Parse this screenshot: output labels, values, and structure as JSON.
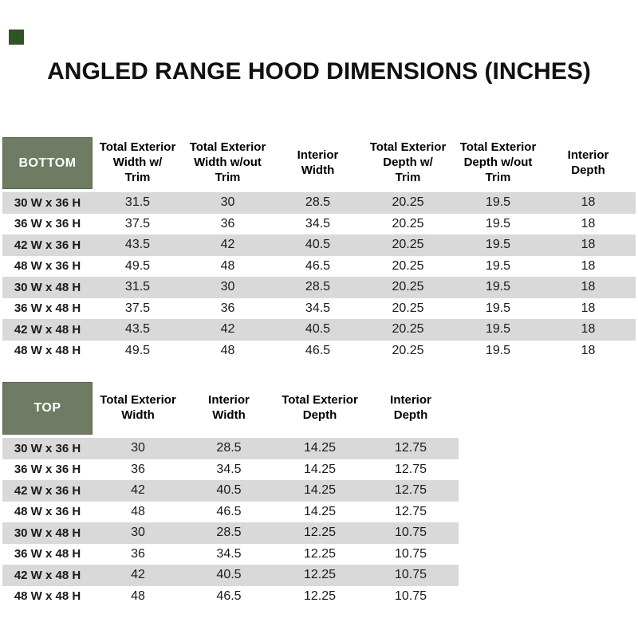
{
  "page": {
    "title": "ANGLED RANGE HOOD DIMENSIONS (INCHES)"
  },
  "colors": {
    "header_green": "#6f7b62",
    "header_green_border": "#5a664c",
    "stripe_gray": "#d9d9d9",
    "finish_swatch_green": "#2f5426",
    "text": "#1a1a1a"
  },
  "bottom_table": {
    "label": "BOTTOM",
    "columns": [
      "Total Exterior\nWidth w/\nTrim",
      "Total Exterior\nWidth w/out\nTrim",
      "Interior\nWidth",
      "Total Exterior\nDepth w/\nTrim",
      "Total Exterior\nDepth w/out\nTrim",
      "Interior\nDepth"
    ],
    "rows": [
      {
        "size": "30 W x 36 H",
        "values": [
          "31.5",
          "30",
          "28.5",
          "20.25",
          "19.5",
          "18"
        ]
      },
      {
        "size": "36 W x 36 H",
        "values": [
          "37.5",
          "36",
          "34.5",
          "20.25",
          "19.5",
          "18"
        ]
      },
      {
        "size": "42 W x 36 H",
        "values": [
          "43.5",
          "42",
          "40.5",
          "20.25",
          "19.5",
          "18"
        ]
      },
      {
        "size": "48 W x 36 H",
        "values": [
          "49.5",
          "48",
          "46.5",
          "20.25",
          "19.5",
          "18"
        ]
      },
      {
        "size": "30 W x 48 H",
        "values": [
          "31.5",
          "30",
          "28.5",
          "20.25",
          "19.5",
          "18"
        ]
      },
      {
        "size": "36 W x 48 H",
        "values": [
          "37.5",
          "36",
          "34.5",
          "20.25",
          "19.5",
          "18"
        ]
      },
      {
        "size": "42 W x 48 H",
        "values": [
          "43.5",
          "42",
          "40.5",
          "20.25",
          "19.5",
          "18"
        ]
      },
      {
        "size": "48 W x 48 H",
        "values": [
          "49.5",
          "48",
          "46.5",
          "20.25",
          "19.5",
          "18"
        ]
      }
    ]
  },
  "top_table": {
    "label": "TOP",
    "columns": [
      "Total Exterior\nWidth",
      "Interior\nWidth",
      "Total Exterior\nDepth",
      "Interior\nDepth"
    ],
    "rows": [
      {
        "size": "30 W x 36 H",
        "values": [
          "30",
          "28.5",
          "14.25",
          "12.75"
        ]
      },
      {
        "size": "36 W x 36 H",
        "values": [
          "36",
          "34.5",
          "14.25",
          "12.75"
        ]
      },
      {
        "size": "42 W x 36 H",
        "values": [
          "42",
          "40.5",
          "14.25",
          "12.75"
        ]
      },
      {
        "size": "48 W x 36 H",
        "values": [
          "48",
          "46.5",
          "14.25",
          "12.75"
        ]
      },
      {
        "size": "30 W x 48 H",
        "values": [
          "30",
          "28.5",
          "12.25",
          "10.75"
        ]
      },
      {
        "size": "36 W x 48 H",
        "values": [
          "36",
          "34.5",
          "12.25",
          "10.75"
        ]
      },
      {
        "size": "42 W x 48 H",
        "values": [
          "42",
          "40.5",
          "12.25",
          "10.75"
        ]
      },
      {
        "size": "48 W x 48 H",
        "values": [
          "48",
          "46.5",
          "12.25",
          "10.75"
        ]
      }
    ]
  }
}
